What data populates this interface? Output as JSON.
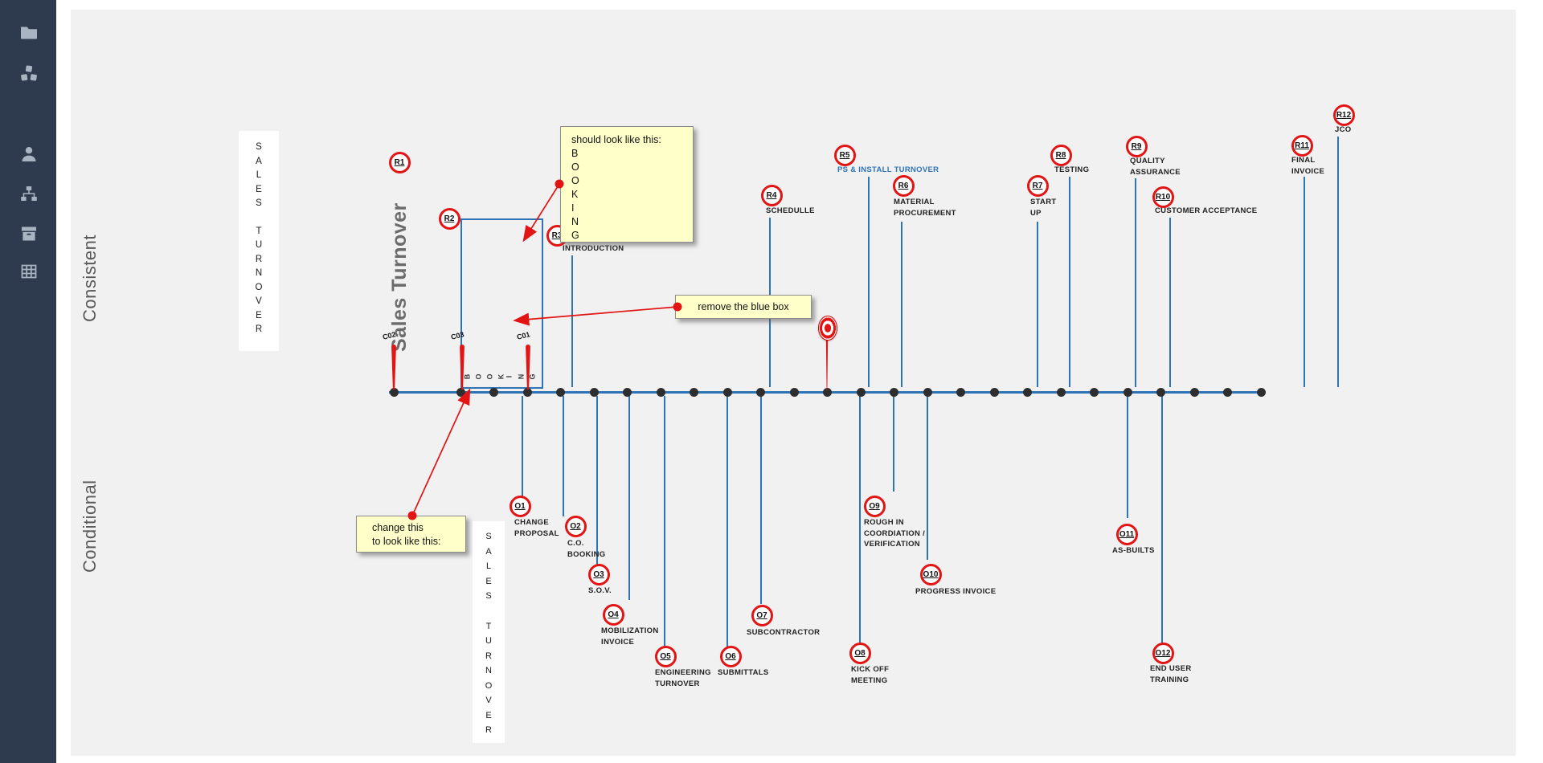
{
  "colors": {
    "accent_red": "#E21414",
    "line_blue": "#2E74B5",
    "sidebar_bg": "#2E3B4E",
    "canvas_bg": "#F1F1F1",
    "note_bg": "#FFFFC9",
    "muted_gray": "#595959"
  },
  "sidebar": {
    "icons": [
      "folder",
      "cubes",
      "user",
      "sitemap",
      "archive-box",
      "table-grid"
    ]
  },
  "side_labels": {
    "consistent": "Consistent",
    "conditional": "Conditional"
  },
  "diagram": {
    "rotated_title": "Sales Turnover",
    "vertical_boxes": [
      {
        "id": "left",
        "word1": "SALES",
        "word2": "TURNOVER"
      },
      {
        "id": "bottom",
        "word1": "SALES",
        "word2": "TURNOVER"
      }
    ],
    "booking_letters": "BOOKING",
    "change_order_ticks": [
      "C02",
      "C03",
      "C01"
    ],
    "top_milestones": [
      {
        "id": "R1",
        "labels": []
      },
      {
        "id": "R2",
        "labels": []
      },
      {
        "id": "R3",
        "labels": [
          "INTRODUCTION"
        ]
      },
      {
        "id": "R4",
        "labels": [
          "SCHEDULLE"
        ]
      },
      {
        "id": "R5",
        "labels": [
          "PS & INSTALL TURNOVER"
        ],
        "label_color": "#2E74B5"
      },
      {
        "id": "R6",
        "labels": [
          "MATERIAL",
          "PROCUREMENT"
        ]
      },
      {
        "id": "R7",
        "labels": [
          "START",
          "UP"
        ]
      },
      {
        "id": "R8",
        "labels": [
          "TESTING"
        ]
      },
      {
        "id": "R9",
        "labels": [
          "QUALITY",
          "ASSURANCE"
        ]
      },
      {
        "id": "R10",
        "labels": [
          "CUSTOMER ACCEPTANCE"
        ]
      },
      {
        "id": "R11",
        "labels": [
          "FINAL",
          "INVOICE"
        ]
      },
      {
        "id": "R12",
        "labels": [
          "JCO"
        ]
      }
    ],
    "bottom_milestones": [
      {
        "id": "O1",
        "labels": [
          "CHANGE",
          "PROPOSAL"
        ]
      },
      {
        "id": "O2",
        "labels": [
          "C.O.",
          "BOOKING"
        ]
      },
      {
        "id": "O3",
        "labels": [
          "S.O.V."
        ]
      },
      {
        "id": "O4",
        "labels": [
          "MOBILIZATION",
          "INVOICE"
        ]
      },
      {
        "id": "O5",
        "labels": [
          "ENGINEERING",
          "TURNOVER"
        ]
      },
      {
        "id": "O6",
        "labels": [
          "SUBMITTALS"
        ]
      },
      {
        "id": "O7",
        "labels": [
          "SUBCONTRACTOR"
        ]
      },
      {
        "id": "O8",
        "labels": [
          "KICK OFF",
          "MEETING"
        ]
      },
      {
        "id": "O9",
        "labels": [
          "ROUGH IN",
          "COORDIATION /",
          "VERIFICATION"
        ]
      },
      {
        "id": "O10",
        "labels": [
          "PROGRESS INVOICE"
        ]
      },
      {
        "id": "O11",
        "labels": [
          "AS-BUILTS"
        ]
      },
      {
        "id": "O12",
        "labels": [
          "END USER",
          "TRAINING"
        ]
      }
    ]
  },
  "annotations": {
    "note_booking": {
      "title": "should look like this:",
      "letters": "BOOKING"
    },
    "note_remove": {
      "text": "remove the blue box"
    },
    "note_change": {
      "line1": "change this",
      "line2": "to look like this:"
    }
  }
}
